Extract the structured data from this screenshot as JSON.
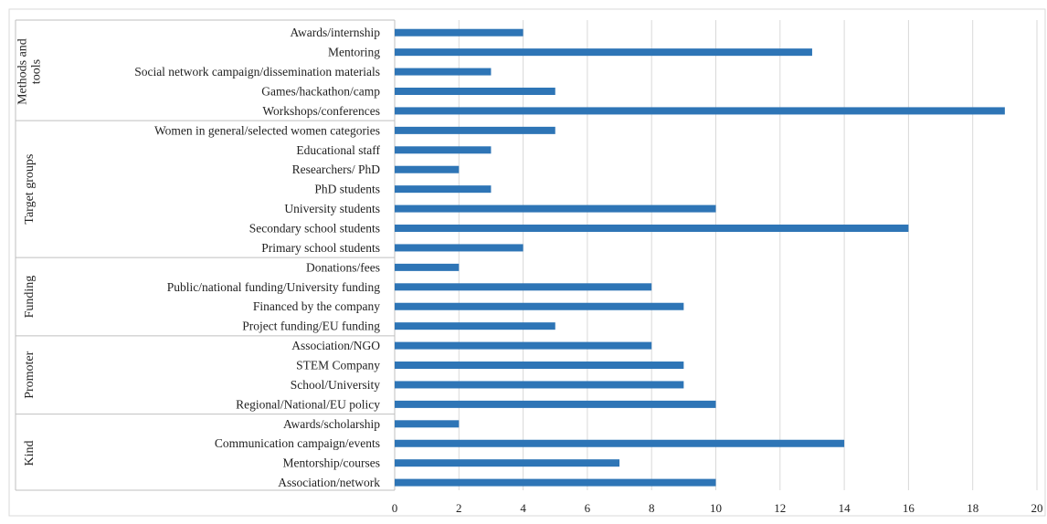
{
  "chart_data": {
    "type": "bar",
    "orientation": "horizontal",
    "color": "#2E75B6",
    "xlim": [
      0,
      20
    ],
    "xticks": [
      0,
      2,
      4,
      6,
      8,
      10,
      12,
      14,
      16,
      18,
      20
    ],
    "grid": "vertical gridlines",
    "legend": "none",
    "groups": [
      {
        "name": "Methods and tools",
        "label_lines": [
          "Methods and",
          "tools"
        ],
        "categories": [
          "Awards/internship",
          "Mentoring",
          "Social network campaign/dissemination materials",
          "Games/hackathon/camp",
          "Workshops/conferences"
        ],
        "values": [
          4,
          13,
          3,
          5,
          19
        ]
      },
      {
        "name": "Target groups",
        "label_lines": [
          "Target groups"
        ],
        "categories": [
          "Women in general/selected women categories",
          "Educational staff",
          "Researchers/ PhD",
          "PhD students",
          "University students",
          "Secondary school students",
          "Primary school students"
        ],
        "values": [
          5,
          3,
          2,
          3,
          10,
          16,
          4
        ]
      },
      {
        "name": "Funding",
        "label_lines": [
          "Funding"
        ],
        "categories": [
          "Donations/fees",
          "Public/national funding/University funding",
          "Financed by the company",
          "Project funding/EU funding"
        ],
        "values": [
          2,
          8,
          9,
          5
        ]
      },
      {
        "name": "Promoter",
        "label_lines": [
          "Promoter"
        ],
        "categories": [
          "Association/NGO",
          "STEM Company",
          "School/University",
          "Regional/National/EU policy"
        ],
        "values": [
          8,
          9,
          9,
          10
        ]
      },
      {
        "name": "Kind",
        "label_lines": [
          "Kind"
        ],
        "categories": [
          "Awards/scholarship",
          "Communication campaign/events",
          "Mentorship/courses",
          "Association/network"
        ],
        "values": [
          2,
          14,
          7,
          10
        ]
      }
    ]
  }
}
